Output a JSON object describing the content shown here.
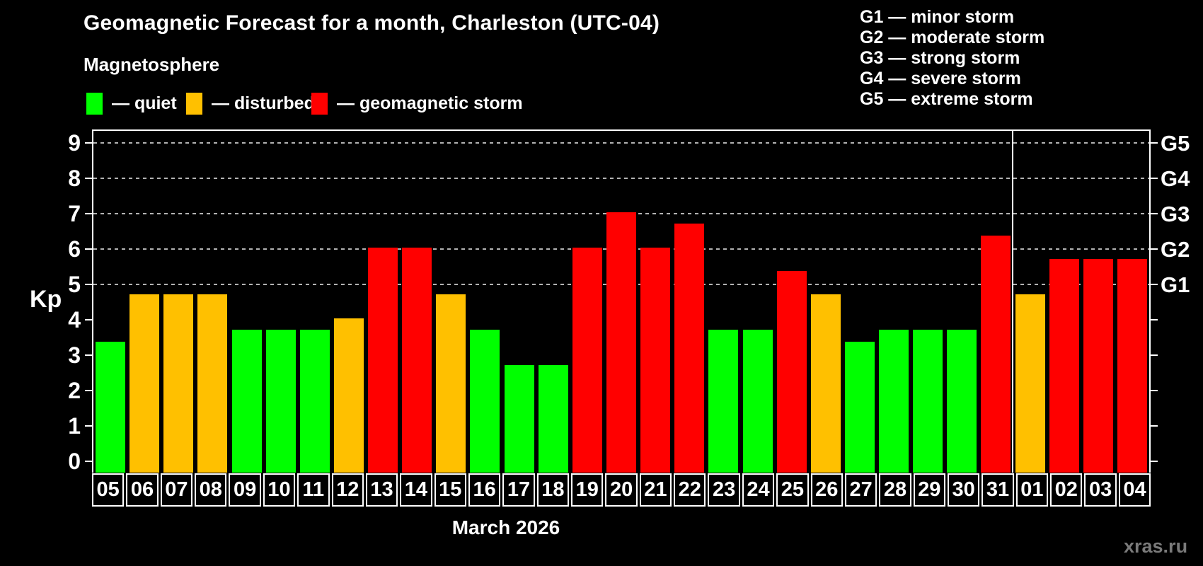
{
  "title": "Geomagnetic Forecast for a month, Charleston (UTC-04)",
  "subtitle": "Magnetosphere",
  "y_axis_label": "Kp",
  "x_axis_label": "March 2026",
  "watermark": "xras.ru",
  "colors": {
    "quiet": "#00ff00",
    "disturbed": "#ffc000",
    "storm": "#ff0000",
    "gridline": "#b3b3b3",
    "axis": "#ffffff",
    "background": "#000000"
  },
  "legend": [
    {
      "swatch": "quiet-swatch",
      "status": "quiet",
      "label": "— quiet"
    },
    {
      "swatch": "disturbed-swatch",
      "status": "disturbed",
      "label": "— disturbed"
    },
    {
      "swatch": "storm-swatch",
      "status": "storm",
      "label": "— geomagnetic storm"
    }
  ],
  "g_legend": [
    "G1 — minor storm",
    "G2 — moderate storm",
    "G3 — strong storm",
    "G4 — severe storm",
    "G5 — extreme storm"
  ],
  "chart_data": {
    "type": "bar",
    "title": "Geomagnetic Forecast for a month, Charleston (UTC-04)",
    "xlabel": "March 2026",
    "ylabel": "Kp",
    "ylim": [
      0,
      9
    ],
    "y_ticks": [
      0,
      1,
      2,
      3,
      4,
      5,
      6,
      7,
      8,
      9
    ],
    "grid_levels": [
      5,
      6,
      7,
      8,
      9
    ],
    "right_axis_labels": [
      {
        "label": "G1",
        "kp": 5
      },
      {
        "label": "G2",
        "kp": 6
      },
      {
        "label": "G3",
        "kp": 7
      },
      {
        "label": "G4",
        "kp": 8
      },
      {
        "label": "G5",
        "kp": 9
      }
    ],
    "separator_after_index": 26,
    "categories": [
      "05",
      "06",
      "07",
      "08",
      "09",
      "10",
      "11",
      "12",
      "13",
      "14",
      "15",
      "16",
      "17",
      "18",
      "19",
      "20",
      "21",
      "22",
      "23",
      "24",
      "25",
      "26",
      "27",
      "28",
      "29",
      "30",
      "31",
      "01",
      "02",
      "03",
      "04"
    ],
    "values": [
      3.33,
      4.67,
      4.67,
      4.67,
      3.67,
      3.67,
      3.67,
      4.0,
      6.0,
      6.0,
      4.67,
      3.67,
      2.67,
      2.67,
      6.0,
      7.0,
      6.0,
      6.67,
      3.67,
      3.67,
      5.33,
      4.67,
      3.33,
      3.67,
      3.67,
      3.67,
      6.33,
      4.67,
      5.67,
      5.67,
      5.67
    ],
    "statuses": [
      "quiet",
      "disturbed",
      "disturbed",
      "disturbed",
      "quiet",
      "quiet",
      "quiet",
      "disturbed",
      "storm",
      "storm",
      "disturbed",
      "quiet",
      "quiet",
      "quiet",
      "storm",
      "storm",
      "storm",
      "storm",
      "quiet",
      "quiet",
      "storm",
      "disturbed",
      "quiet",
      "quiet",
      "quiet",
      "quiet",
      "storm",
      "disturbed",
      "storm",
      "storm",
      "storm"
    ]
  }
}
